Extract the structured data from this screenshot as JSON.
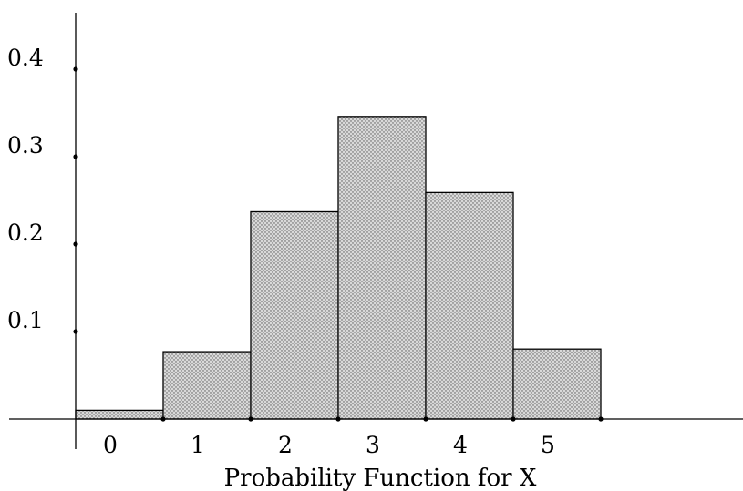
{
  "chart_data": {
    "type": "bar",
    "title": "",
    "xlabel": "Probability Function for X",
    "ylabel": "",
    "categories": [
      "0",
      "1",
      "2",
      "3",
      "4",
      "5"
    ],
    "values": [
      0.01,
      0.077,
      0.237,
      0.346,
      0.259,
      0.08
    ],
    "ylim": [
      0,
      0.45
    ],
    "yticks": [
      {
        "value": 0.1,
        "label": "0.1"
      },
      {
        "value": 0.2,
        "label": "0.2"
      },
      {
        "value": 0.3,
        "label": "0.3"
      },
      {
        "value": 0.4,
        "label": "0.4"
      }
    ],
    "grid": false,
    "bar_fill": "stippled gray",
    "colors": {
      "bar_fill": "#d9d9d9",
      "bar_dots": "#555555",
      "stroke": "#000000"
    }
  }
}
